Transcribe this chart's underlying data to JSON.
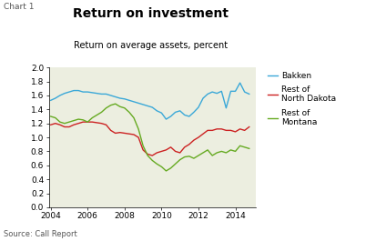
{
  "title": "Return on investment",
  "subtitle": "Return on average assets, percent",
  "chart_label": "Chart 1",
  "source": "Source: Call Report",
  "background_color": "#eceee0",
  "fig_bg_color": "#ffffff",
  "ylim": [
    0.0,
    2.0
  ],
  "yticks": [
    0.0,
    0.2,
    0.4,
    0.6,
    0.8,
    1.0,
    1.2,
    1.4,
    1.6,
    1.8,
    2.0
  ],
  "xlim": [
    2003.9,
    2015.1
  ],
  "xtick_labels": [
    "2004",
    "2006",
    "2008",
    "2010",
    "2012",
    "2014"
  ],
  "xtick_positions": [
    2004,
    2006,
    2008,
    2010,
    2012,
    2014
  ],
  "colors": {
    "bakken": "#3aa8d8",
    "nd": "#cc2222",
    "mt": "#66aa22"
  },
  "legend": {
    "bakken": "Bakken",
    "nd": "Rest of\nNorth Dakota",
    "mt": "Rest of\nMontana"
  },
  "bakken_x": [
    2004.0,
    2004.25,
    2004.5,
    2004.75,
    2005.0,
    2005.25,
    2005.5,
    2005.75,
    2006.0,
    2006.25,
    2006.5,
    2006.75,
    2007.0,
    2007.25,
    2007.5,
    2007.75,
    2008.0,
    2008.25,
    2008.5,
    2008.75,
    2009.0,
    2009.25,
    2009.5,
    2009.75,
    2010.0,
    2010.25,
    2010.5,
    2010.75,
    2011.0,
    2011.25,
    2011.5,
    2011.75,
    2012.0,
    2012.25,
    2012.5,
    2012.75,
    2013.0,
    2013.25,
    2013.5,
    2013.75,
    2014.0,
    2014.25,
    2014.5,
    2014.75
  ],
  "bakken_y": [
    1.53,
    1.56,
    1.6,
    1.63,
    1.65,
    1.67,
    1.67,
    1.65,
    1.65,
    1.64,
    1.63,
    1.62,
    1.62,
    1.6,
    1.58,
    1.56,
    1.55,
    1.53,
    1.51,
    1.49,
    1.47,
    1.45,
    1.43,
    1.38,
    1.35,
    1.26,
    1.3,
    1.36,
    1.38,
    1.32,
    1.3,
    1.36,
    1.43,
    1.56,
    1.62,
    1.65,
    1.63,
    1.66,
    1.42,
    1.66,
    1.66,
    1.78,
    1.65,
    1.62
  ],
  "nd_x": [
    2004.0,
    2004.25,
    2004.5,
    2004.75,
    2005.0,
    2005.25,
    2005.5,
    2005.75,
    2006.0,
    2006.25,
    2006.5,
    2006.75,
    2007.0,
    2007.25,
    2007.5,
    2007.75,
    2008.0,
    2008.25,
    2008.5,
    2008.75,
    2009.0,
    2009.25,
    2009.5,
    2009.75,
    2010.0,
    2010.25,
    2010.5,
    2010.75,
    2011.0,
    2011.25,
    2011.5,
    2011.75,
    2012.0,
    2012.25,
    2012.5,
    2012.75,
    2013.0,
    2013.25,
    2013.5,
    2013.75,
    2014.0,
    2014.25,
    2014.5,
    2014.75
  ],
  "nd_y": [
    1.18,
    1.2,
    1.18,
    1.15,
    1.15,
    1.18,
    1.2,
    1.22,
    1.22,
    1.22,
    1.21,
    1.2,
    1.18,
    1.1,
    1.06,
    1.07,
    1.06,
    1.05,
    1.04,
    1.0,
    0.82,
    0.76,
    0.74,
    0.78,
    0.8,
    0.82,
    0.86,
    0.8,
    0.78,
    0.86,
    0.9,
    0.96,
    1.0,
    1.05,
    1.1,
    1.1,
    1.12,
    1.12,
    1.1,
    1.1,
    1.08,
    1.12,
    1.1,
    1.15
  ],
  "mt_x": [
    2004.0,
    2004.25,
    2004.5,
    2004.75,
    2005.0,
    2005.25,
    2005.5,
    2005.75,
    2006.0,
    2006.25,
    2006.5,
    2006.75,
    2007.0,
    2007.25,
    2007.5,
    2007.75,
    2008.0,
    2008.25,
    2008.5,
    2008.75,
    2009.0,
    2009.25,
    2009.5,
    2009.75,
    2010.0,
    2010.25,
    2010.5,
    2010.75,
    2011.0,
    2011.25,
    2011.5,
    2011.75,
    2012.0,
    2012.25,
    2012.5,
    2012.75,
    2013.0,
    2013.25,
    2013.5,
    2013.75,
    2014.0,
    2014.25,
    2014.5,
    2014.75
  ],
  "mt_y": [
    1.3,
    1.28,
    1.22,
    1.2,
    1.22,
    1.24,
    1.26,
    1.25,
    1.22,
    1.28,
    1.32,
    1.36,
    1.42,
    1.46,
    1.48,
    1.44,
    1.42,
    1.36,
    1.28,
    1.12,
    0.88,
    0.74,
    0.67,
    0.62,
    0.58,
    0.52,
    0.56,
    0.62,
    0.68,
    0.72,
    0.73,
    0.7,
    0.74,
    0.78,
    0.82,
    0.74,
    0.78,
    0.8,
    0.78,
    0.82,
    0.8,
    0.88,
    0.86,
    0.84
  ]
}
